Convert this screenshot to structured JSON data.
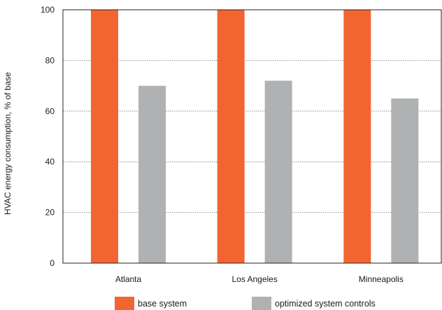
{
  "chart_data": {
    "type": "bar",
    "categories": [
      "Atlanta",
      "Los Angeles",
      "Minneapolis"
    ],
    "series": [
      {
        "name": "base system",
        "values": [
          100,
          100,
          100
        ],
        "color": "#f26531"
      },
      {
        "name": "optimized system controls",
        "values": [
          70,
          72,
          65
        ],
        "color": "#b0b1b3"
      }
    ],
    "title": "",
    "xlabel": "",
    "ylabel": "HVAC energy consumption, % of base",
    "ylim": [
      0,
      100
    ],
    "yticks": [
      0,
      20,
      40,
      60,
      80,
      100
    ],
    "grid": "horizontal dotted",
    "legend_position": "bottom"
  }
}
